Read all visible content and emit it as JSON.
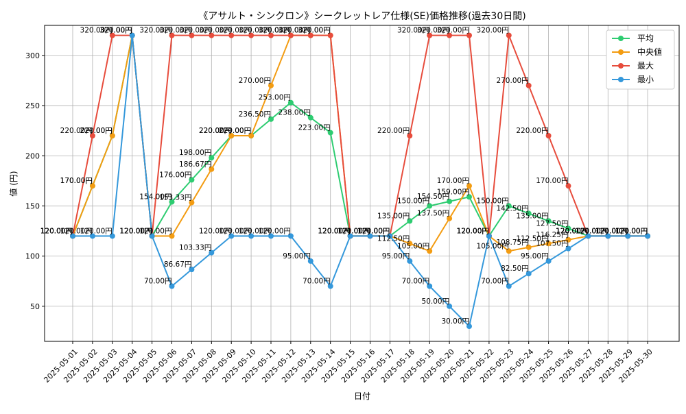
{
  "chart_data": {
    "type": "line",
    "title": "《アサルト・シンクロン》シークレットレア仕様(SE)価格推移(過去30日間)",
    "xlabel": "日付",
    "ylabel": "値 (円)",
    "ylim": [
      15,
      330
    ],
    "yticks": [
      50,
      100,
      150,
      200,
      250,
      300
    ],
    "grid": true,
    "legend_position": "top-right",
    "label_suffix": "円",
    "categories": [
      "2025-05-01",
      "2025-05-02",
      "2025-05-03",
      "2025-05-04",
      "2025-05-05",
      "2025-05-06",
      "2025-05-07",
      "2025-05-08",
      "2025-05-09",
      "2025-05-10",
      "2025-05-11",
      "2025-05-12",
      "2025-05-13",
      "2025-05-14",
      "2025-05-15",
      "2025-05-16",
      "2025-05-17",
      "2025-05-18",
      "2025-05-19",
      "2025-05-20",
      "2025-05-21",
      "2025-05-22",
      "2025-05-23",
      "2025-05-24",
      "2025-05-25",
      "2025-05-26",
      "2025-05-27",
      "2025-05-28",
      "2025-05-29",
      "2025-05-30"
    ],
    "series": [
      {
        "name": "平均",
        "color": "#2ecc71",
        "values": [
          120.0,
          170.0,
          220.0,
          320.0,
          120.0,
          154.0,
          176.0,
          198.0,
          220.0,
          220.0,
          236.5,
          253.0,
          238.0,
          223.0,
          120.0,
          120.0,
          120.0,
          135.0,
          150.0,
          154.5,
          159.0,
          120.0,
          150.0,
          142.5,
          135.0,
          127.5,
          120.0,
          120.0,
          120.0,
          120.0
        ]
      },
      {
        "name": "中央値",
        "color": "#f39c12",
        "values": [
          120.0,
          170.0,
          220.0,
          320.0,
          120.0,
          120.0,
          153.33,
          186.67,
          220.0,
          220.0,
          270.0,
          320.0,
          320.0,
          320.0,
          120.0,
          120.0,
          120.0,
          112.5,
          105.0,
          137.5,
          170.0,
          120.0,
          105.0,
          108.75,
          112.5,
          116.25,
          120.0,
          120.0,
          120.0,
          120.0
        ]
      },
      {
        "name": "最大",
        "color": "#e74c3c",
        "values": [
          120.0,
          220.0,
          320.0,
          320.0,
          120.0,
          320.0,
          320.0,
          320.0,
          320.0,
          320.0,
          320.0,
          320.0,
          320.0,
          320.0,
          120.0,
          120.0,
          120.0,
          220.0,
          320.0,
          320.0,
          320.0,
          120.0,
          320.0,
          270.0,
          220.0,
          170.0,
          120.0,
          120.0,
          120.0,
          120.0
        ]
      },
      {
        "name": "最小",
        "color": "#3498db",
        "values": [
          120.0,
          120.0,
          120.0,
          320.0,
          120.0,
          70.0,
          86.67,
          103.33,
          120.0,
          120.0,
          120.0,
          120.0,
          95.0,
          70.0,
          120.0,
          120.0,
          120.0,
          95.0,
          70.0,
          50.0,
          30.0,
          120.0,
          70.0,
          82.5,
          95.0,
          107.5,
          120.0,
          120.0,
          120.0,
          120.0
        ]
      }
    ]
  }
}
